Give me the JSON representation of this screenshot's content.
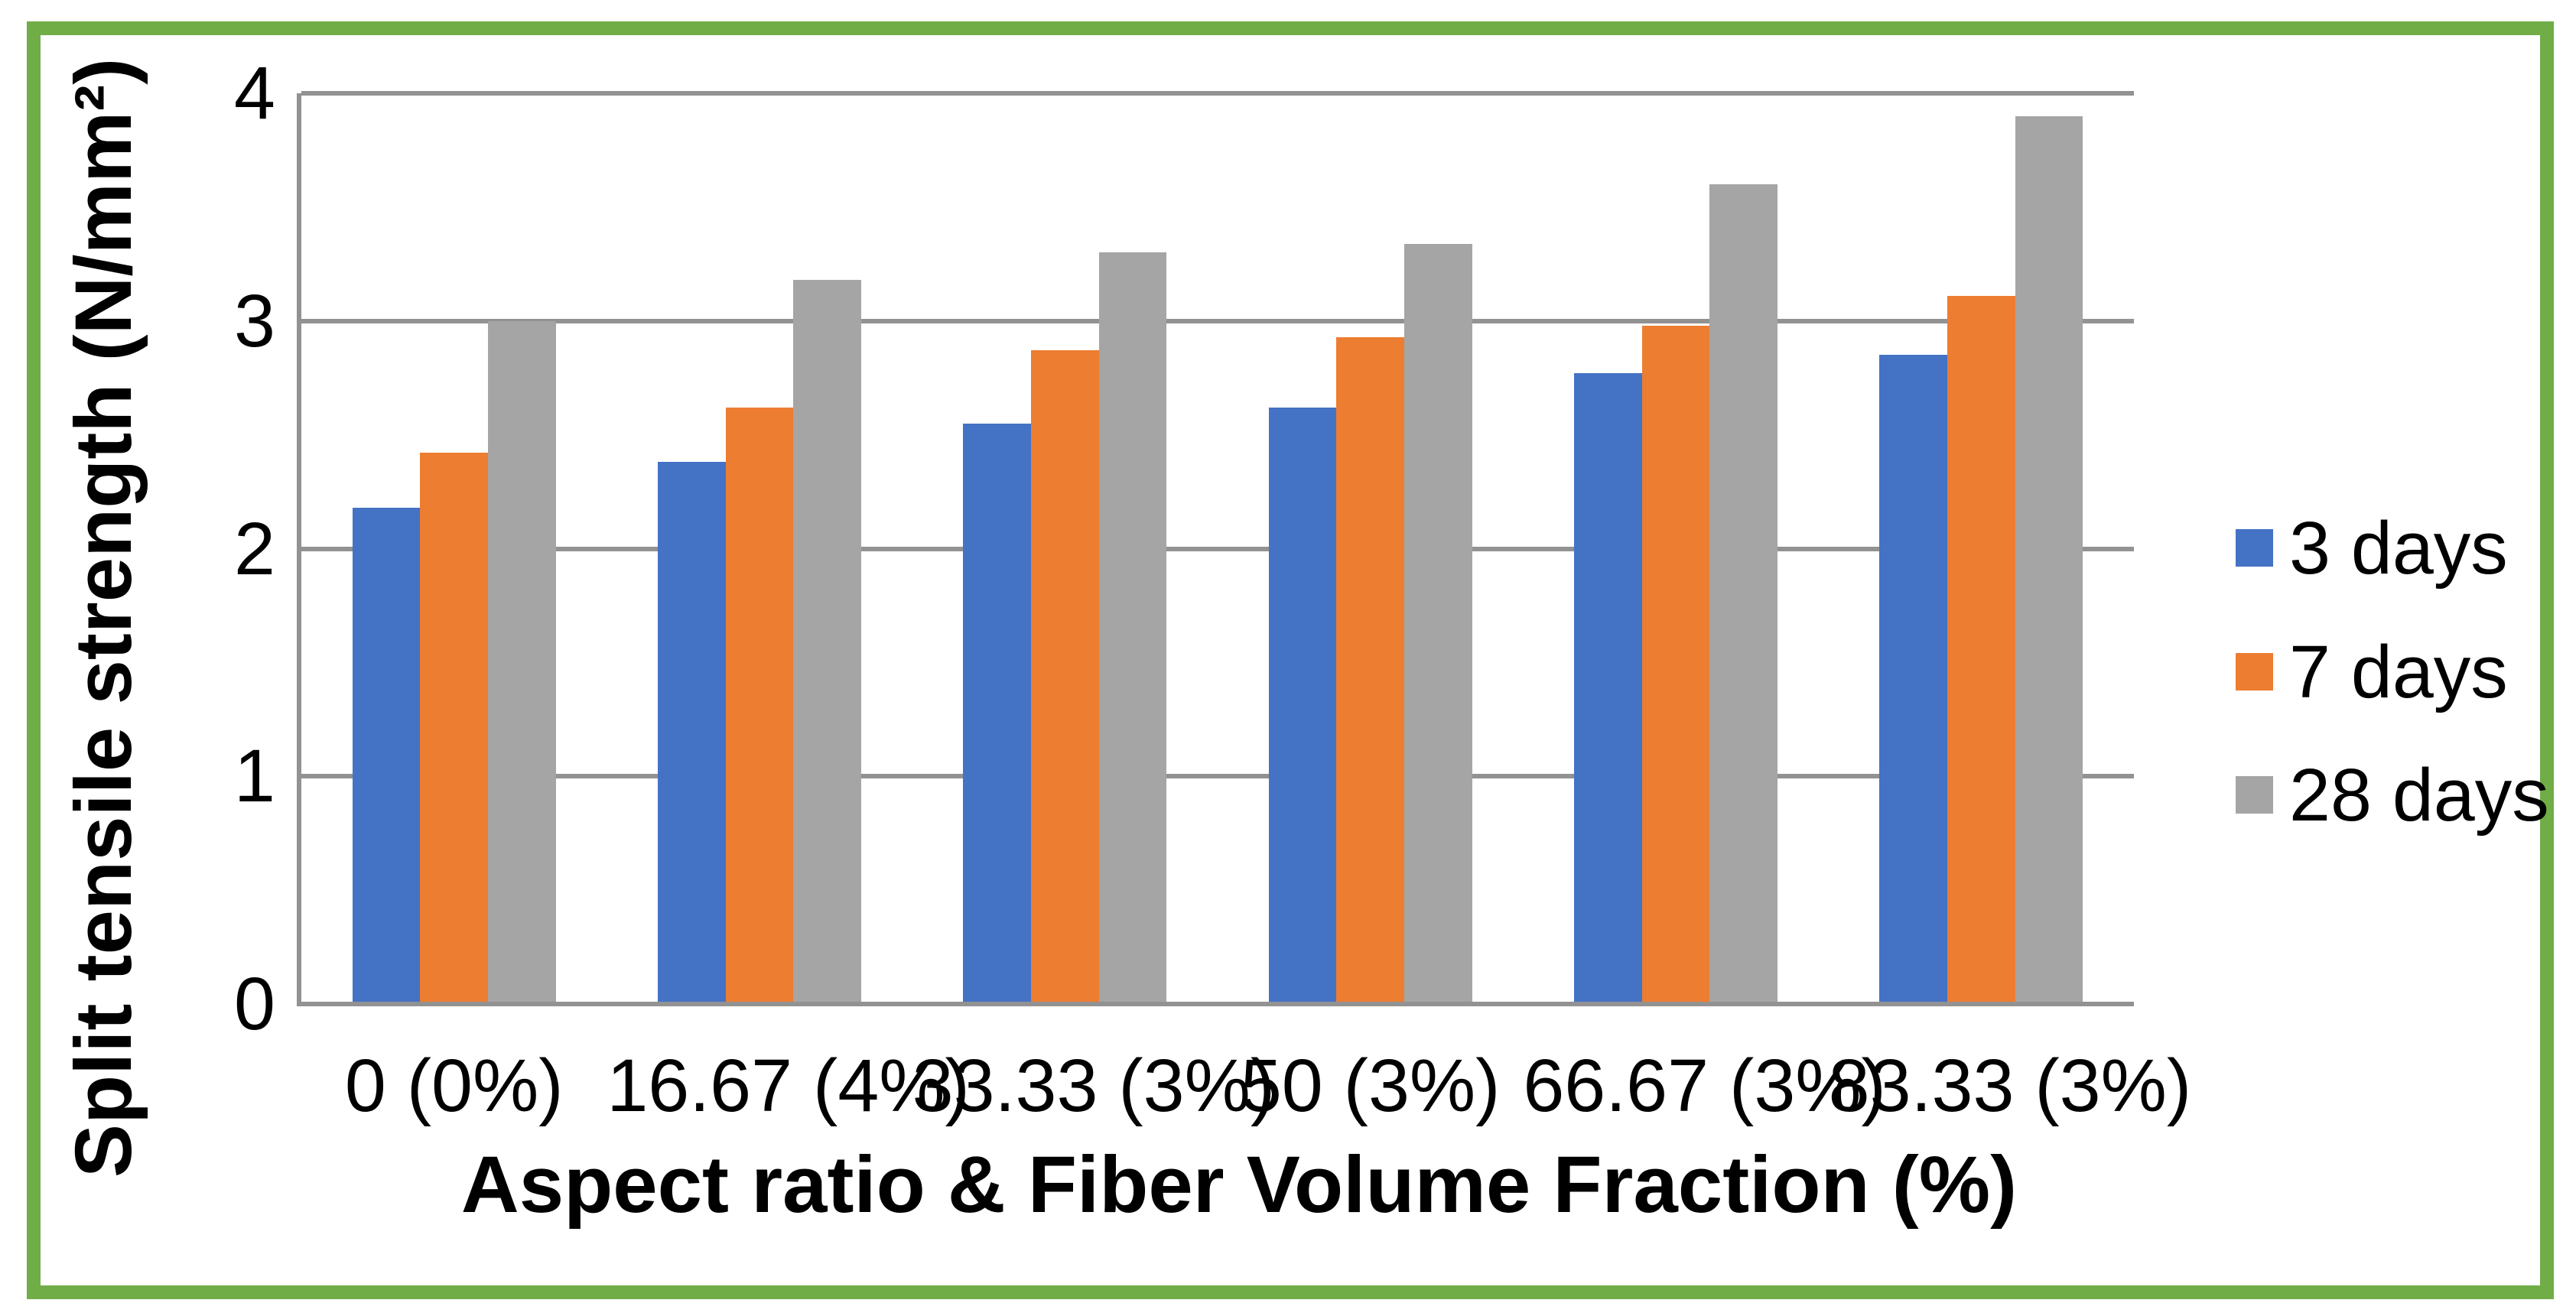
{
  "figure": {
    "background_color": "#FFFFFF",
    "border_color": "#70AD47",
    "gridline_color": "#929292",
    "text_color": "#000000"
  },
  "chart_data": {
    "type": "bar",
    "title": "",
    "categories": [
      "0 (0%)",
      "16.67 (4%)",
      "33.33 (3%)",
      "50 (3%)",
      "66.67 (3%)",
      "83.33 (3%)"
    ],
    "series": [
      {
        "name": "3 days",
        "color": "#4472C4",
        "values": [
          2.18,
          2.38,
          2.55,
          2.62,
          2.77,
          2.85
        ]
      },
      {
        "name": "7 days",
        "color": "#ED7D31",
        "values": [
          2.42,
          2.62,
          2.87,
          2.93,
          2.98,
          3.11
        ]
      },
      {
        "name": "28 days",
        "color": "#A5A5A5",
        "values": [
          3.0,
          3.18,
          3.3,
          3.34,
          3.6,
          3.9
        ]
      }
    ],
    "xlabel": "Aspect ratio & Fiber Volume Fraction (%)",
    "ylabel": "Split tensile strength (N/mm²)",
    "ylim": [
      0,
      4
    ],
    "yticks": [
      0,
      1,
      2,
      3,
      4
    ],
    "grid": true,
    "legend_position": "right"
  }
}
